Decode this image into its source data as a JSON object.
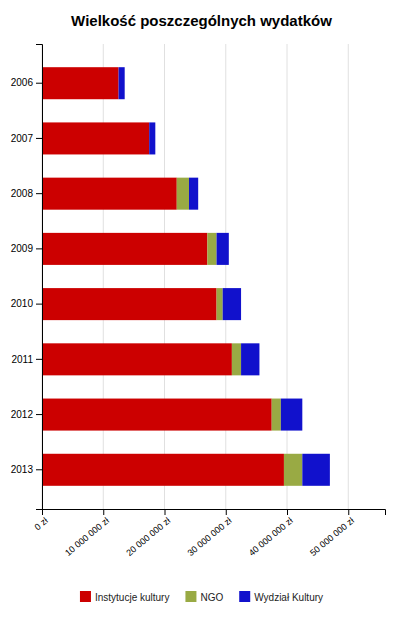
{
  "chart_data": {
    "type": "bar",
    "orientation": "horizontal",
    "stacked": true,
    "title": "Wielkość poszczególnych wydatków",
    "categories": [
      "2006",
      "2007",
      "2008",
      "2009",
      "2010",
      "2011",
      "2012",
      "2013"
    ],
    "series": [
      {
        "name": "Instytucje kultury",
        "color": "#CC0000",
        "values": [
          12500000,
          17500000,
          22000000,
          27000000,
          28500000,
          31000000,
          37500000,
          39500000
        ]
      },
      {
        "name": "NGO",
        "color": "#99AA44",
        "values": [
          0,
          0,
          2000000,
          1500000,
          1000000,
          1500000,
          1500000,
          3000000
        ]
      },
      {
        "name": "Wydział Kultury",
        "color": "#1111CC",
        "values": [
          1000000,
          1000000,
          1500000,
          2000000,
          3000000,
          3000000,
          3500000,
          4500000
        ]
      }
    ],
    "xlim": [
      0,
      56000000
    ],
    "xticks": [
      {
        "value": 0,
        "label": "0 zł"
      },
      {
        "value": 10000000,
        "label": "10 000 000 zł"
      },
      {
        "value": 20000000,
        "label": "20 000 000 zł"
      },
      {
        "value": 30000000,
        "label": "30 000 000 zł"
      },
      {
        "value": 40000000,
        "label": "40 000 000 zł"
      },
      {
        "value": 50000000,
        "label": "50 000 000 zł"
      }
    ],
    "grid": true,
    "legend": "bottom"
  }
}
